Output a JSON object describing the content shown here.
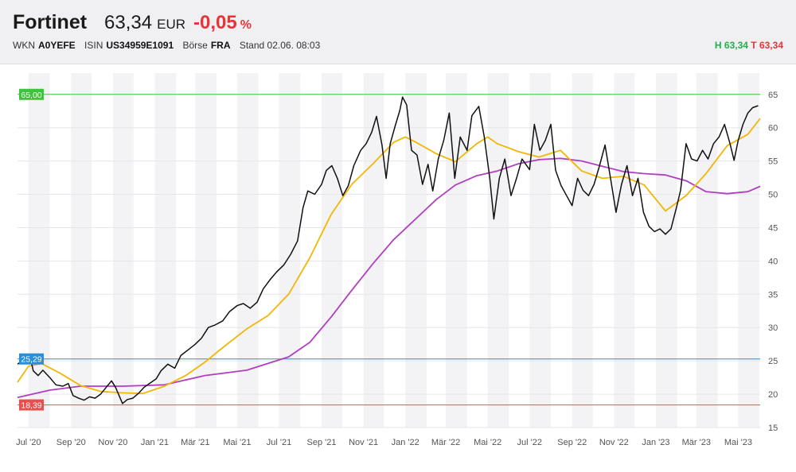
{
  "header": {
    "name": "Fortinet",
    "price": "63,34",
    "currency": "EUR",
    "change": "-0,05",
    "change_unit": "%",
    "wkn_label": "WKN",
    "wkn": "A0YEFE",
    "isin_label": "ISIN",
    "isin": "US34959E1091",
    "exchange_label": "Börse",
    "exchange": "FRA",
    "stand": "Stand 02.06. 08:03",
    "high": "H 63,34",
    "low": "T 63,34"
  },
  "colors": {
    "positive": "#22b04b",
    "negative": "#e8333a",
    "price_line": "#111111",
    "ma_short": "#f2b705",
    "ma_long": "#b03fc0",
    "ref_high": "#3cc43c",
    "ref_mid": "#2a8fd6",
    "ref_low": "#e85050"
  },
  "chart_data": {
    "type": "line",
    "ylim": [
      15,
      67
    ],
    "yticks": [
      "65",
      "60",
      "55",
      "50",
      "45",
      "40",
      "35",
      "30",
      "25",
      "20",
      "15"
    ],
    "xlabels": [
      "Jul '20",
      "Sep '20",
      "Nov '20",
      "Jan '21",
      "Mär '21",
      "Mai '21",
      "Jul '21",
      "Sep '21",
      "Nov '21",
      "Jan '22",
      "Mär '22",
      "Mai '22",
      "Jul '22",
      "Sep '22",
      "Nov '22",
      "Jan '23",
      "Mär '23",
      "Mai '23"
    ],
    "reference_lines": [
      {
        "label": "65,00",
        "value": 65.0
      },
      {
        "label": "25,29",
        "value": 25.29
      },
      {
        "label": "18,39",
        "value": 18.39
      }
    ],
    "series": [
      {
        "key": "price",
        "values": [
          [
            "2020-06-15",
            24.5
          ],
          [
            "2020-06-25",
            25.2
          ],
          [
            "2020-07-03",
            25.8
          ],
          [
            "2020-07-08",
            23.5
          ],
          [
            "2020-07-15",
            22.8
          ],
          [
            "2020-07-22",
            23.6
          ],
          [
            "2020-08-01",
            22.5
          ],
          [
            "2020-08-10",
            21.4
          ],
          [
            "2020-08-20",
            21.2
          ],
          [
            "2020-08-28",
            21.6
          ],
          [
            "2020-09-04",
            19.8
          ],
          [
            "2020-09-12",
            19.4
          ],
          [
            "2020-09-20",
            19.1
          ],
          [
            "2020-09-28",
            19.6
          ],
          [
            "2020-10-06",
            19.4
          ],
          [
            "2020-10-14",
            20.0
          ],
          [
            "2020-10-22",
            21.0
          ],
          [
            "2020-10-30",
            22.0
          ],
          [
            "2020-11-05",
            21.0
          ],
          [
            "2020-11-10",
            19.8
          ],
          [
            "2020-11-15",
            18.6
          ],
          [
            "2020-11-22",
            19.2
          ],
          [
            "2020-11-30",
            19.4
          ],
          [
            "2020-12-08",
            20.1
          ],
          [
            "2020-12-16",
            21.0
          ],
          [
            "2020-12-24",
            21.6
          ],
          [
            "2021-01-03",
            22.3
          ],
          [
            "2021-01-10",
            23.5
          ],
          [
            "2021-01-20",
            24.5
          ],
          [
            "2021-01-30",
            23.9
          ],
          [
            "2021-02-08",
            25.8
          ],
          [
            "2021-02-18",
            26.6
          ],
          [
            "2021-03-01",
            27.5
          ],
          [
            "2021-03-10",
            28.4
          ],
          [
            "2021-03-20",
            30.0
          ],
          [
            "2021-03-30",
            30.4
          ],
          [
            "2021-04-10",
            31.0
          ],
          [
            "2021-04-20",
            32.4
          ],
          [
            "2021-05-01",
            33.3
          ],
          [
            "2021-05-10",
            33.6
          ],
          [
            "2021-05-20",
            32.9
          ],
          [
            "2021-05-30",
            33.8
          ],
          [
            "2021-06-08",
            35.8
          ],
          [
            "2021-06-18",
            37.2
          ],
          [
            "2021-06-28",
            38.4
          ],
          [
            "2021-07-08",
            39.4
          ],
          [
            "2021-07-18",
            41.0
          ],
          [
            "2021-07-28",
            43.0
          ],
          [
            "2021-08-05",
            48.0
          ],
          [
            "2021-08-12",
            50.5
          ],
          [
            "2021-08-22",
            50.0
          ],
          [
            "2021-09-01",
            51.5
          ],
          [
            "2021-09-08",
            53.6
          ],
          [
            "2021-09-16",
            54.3
          ],
          [
            "2021-09-24",
            52.4
          ],
          [
            "2021-10-02",
            49.8
          ],
          [
            "2021-10-10",
            51.3
          ],
          [
            "2021-10-18",
            54.3
          ],
          [
            "2021-10-28",
            56.6
          ],
          [
            "2021-11-05",
            57.6
          ],
          [
            "2021-11-13",
            59.3
          ],
          [
            "2021-11-20",
            61.7
          ],
          [
            "2021-11-28",
            57.4
          ],
          [
            "2021-12-04",
            52.4
          ],
          [
            "2021-12-10",
            57.6
          ],
          [
            "2021-12-17",
            60.2
          ],
          [
            "2021-12-24",
            62.6
          ],
          [
            "2021-12-28",
            64.6
          ],
          [
            "2022-01-03",
            63.4
          ],
          [
            "2022-01-10",
            56.6
          ],
          [
            "2022-01-18",
            55.9
          ],
          [
            "2022-01-26",
            51.5
          ],
          [
            "2022-02-03",
            54.5
          ],
          [
            "2022-02-10",
            50.5
          ],
          [
            "2022-02-18",
            55.3
          ],
          [
            "2022-02-26",
            58.1
          ],
          [
            "2022-03-06",
            62.2
          ],
          [
            "2022-03-14",
            52.4
          ],
          [
            "2022-03-22",
            58.6
          ],
          [
            "2022-04-01",
            56.6
          ],
          [
            "2022-04-08",
            61.8
          ],
          [
            "2022-04-18",
            63.2
          ],
          [
            "2022-04-26",
            58.6
          ],
          [
            "2022-05-04",
            52.4
          ],
          [
            "2022-05-10",
            46.3
          ],
          [
            "2022-05-18",
            52.4
          ],
          [
            "2022-05-26",
            55.3
          ],
          [
            "2022-06-04",
            49.8
          ],
          [
            "2022-06-12",
            52.4
          ],
          [
            "2022-06-20",
            55.3
          ],
          [
            "2022-07-01",
            53.7
          ],
          [
            "2022-07-08",
            60.5
          ],
          [
            "2022-07-16",
            56.6
          ],
          [
            "2022-07-24",
            58.1
          ],
          [
            "2022-08-01",
            60.5
          ],
          [
            "2022-08-08",
            53.6
          ],
          [
            "2022-08-16",
            51.3
          ],
          [
            "2022-08-24",
            49.8
          ],
          [
            "2022-09-01",
            48.3
          ],
          [
            "2022-09-09",
            52.4
          ],
          [
            "2022-09-17",
            50.6
          ],
          [
            "2022-09-25",
            49.8
          ],
          [
            "2022-10-03",
            51.5
          ],
          [
            "2022-10-11",
            54.3
          ],
          [
            "2022-10-19",
            57.4
          ],
          [
            "2022-10-27",
            52.4
          ],
          [
            "2022-11-04",
            47.3
          ],
          [
            "2022-11-12",
            51.5
          ],
          [
            "2022-11-20",
            54.3
          ],
          [
            "2022-11-28",
            49.8
          ],
          [
            "2022-12-06",
            52.4
          ],
          [
            "2022-12-14",
            47.3
          ],
          [
            "2022-12-22",
            45.2
          ],
          [
            "2022-12-30",
            44.4
          ],
          [
            "2023-01-07",
            44.8
          ],
          [
            "2023-01-15",
            44.0
          ],
          [
            "2023-01-23",
            44.8
          ],
          [
            "2023-01-31",
            48.0
          ],
          [
            "2023-02-06",
            50.6
          ],
          [
            "2023-02-14",
            57.6
          ],
          [
            "2023-02-22",
            55.3
          ],
          [
            "2023-03-02",
            55.0
          ],
          [
            "2023-03-10",
            56.6
          ],
          [
            "2023-03-18",
            55.3
          ],
          [
            "2023-03-26",
            57.6
          ],
          [
            "2023-04-03",
            58.6
          ],
          [
            "2023-04-11",
            60.5
          ],
          [
            "2023-04-19",
            57.6
          ],
          [
            "2023-04-25",
            55.1
          ],
          [
            "2023-05-01",
            58.1
          ],
          [
            "2023-05-08",
            60.5
          ],
          [
            "2023-05-15",
            62.2
          ],
          [
            "2023-05-22",
            63.0
          ],
          [
            "2023-05-30",
            63.3
          ]
        ]
      },
      {
        "key": "ma_short",
        "values": [
          [
            "2020-06-15",
            21.8
          ],
          [
            "2020-07-01",
            24.2
          ],
          [
            "2020-07-20",
            24.6
          ],
          [
            "2020-08-15",
            23.2
          ],
          [
            "2020-09-15",
            21.3
          ],
          [
            "2020-10-15",
            20.4
          ],
          [
            "2020-11-15",
            20.2
          ],
          [
            "2020-12-15",
            20.1
          ],
          [
            "2021-01-15",
            21.2
          ],
          [
            "2021-02-15",
            22.8
          ],
          [
            "2021-03-15",
            24.8
          ],
          [
            "2021-04-15",
            27.4
          ],
          [
            "2021-05-15",
            29.8
          ],
          [
            "2021-06-15",
            31.8
          ],
          [
            "2021-07-15",
            35.0
          ],
          [
            "2021-08-15",
            40.5
          ],
          [
            "2021-09-15",
            47.0
          ],
          [
            "2021-10-15",
            51.5
          ],
          [
            "2021-11-15",
            54.6
          ],
          [
            "2021-12-15",
            57.8
          ],
          [
            "2022-01-01",
            58.6
          ],
          [
            "2022-01-15",
            57.9
          ],
          [
            "2022-02-15",
            56.1
          ],
          [
            "2022-03-15",
            54.9
          ],
          [
            "2022-04-15",
            57.6
          ],
          [
            "2022-05-01",
            58.6
          ],
          [
            "2022-05-15",
            57.6
          ],
          [
            "2022-06-15",
            56.4
          ],
          [
            "2022-07-15",
            55.6
          ],
          [
            "2022-08-15",
            56.6
          ],
          [
            "2022-09-15",
            53.5
          ],
          [
            "2022-10-15",
            52.4
          ],
          [
            "2022-11-15",
            52.7
          ],
          [
            "2022-12-15",
            51.4
          ],
          [
            "2023-01-15",
            47.5
          ],
          [
            "2023-02-01",
            48.8
          ],
          [
            "2023-02-15",
            49.9
          ],
          [
            "2023-03-15",
            53.1
          ],
          [
            "2023-04-15",
            57.3
          ],
          [
            "2023-05-15",
            59.0
          ],
          [
            "2023-06-02",
            61.4
          ]
        ]
      },
      {
        "key": "ma_long",
        "values": [
          [
            "2020-06-15",
            19.5
          ],
          [
            "2020-08-01",
            20.6
          ],
          [
            "2020-09-15",
            21.2
          ],
          [
            "2020-11-15",
            21.2
          ],
          [
            "2021-01-15",
            21.4
          ],
          [
            "2021-03-15",
            22.8
          ],
          [
            "2021-05-15",
            23.6
          ],
          [
            "2021-07-15",
            25.6
          ],
          [
            "2021-08-15",
            27.8
          ],
          [
            "2021-09-15",
            31.6
          ],
          [
            "2021-10-15",
            35.6
          ],
          [
            "2021-11-15",
            39.6
          ],
          [
            "2021-12-15",
            43.2
          ],
          [
            "2022-01-15",
            46.2
          ],
          [
            "2022-02-15",
            49.2
          ],
          [
            "2022-03-15",
            51.4
          ],
          [
            "2022-04-15",
            52.8
          ],
          [
            "2022-05-15",
            53.5
          ],
          [
            "2022-06-15",
            54.6
          ],
          [
            "2022-07-15",
            55.2
          ],
          [
            "2022-08-15",
            55.4
          ],
          [
            "2022-09-15",
            55.0
          ],
          [
            "2022-10-15",
            54.2
          ],
          [
            "2022-11-15",
            53.4
          ],
          [
            "2022-12-15",
            53.1
          ],
          [
            "2023-01-15",
            52.9
          ],
          [
            "2023-02-15",
            52.0
          ],
          [
            "2023-03-15",
            50.4
          ],
          [
            "2023-04-15",
            50.1
          ],
          [
            "2023-05-15",
            50.4
          ],
          [
            "2023-06-02",
            51.2
          ]
        ]
      }
    ]
  }
}
